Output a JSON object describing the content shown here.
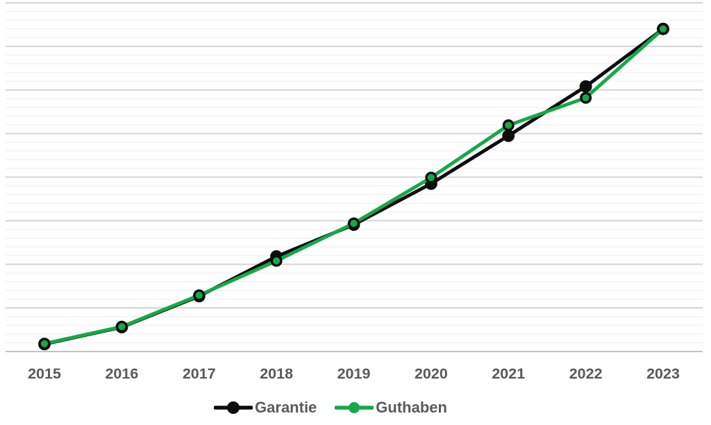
{
  "chart_data": {
    "type": "line",
    "title": "",
    "xlabel": "",
    "ylabel": "",
    "categories": [
      "2015",
      "2016",
      "2017",
      "2018",
      "2019",
      "2020",
      "2021",
      "2022",
      "2023"
    ],
    "series": [
      {
        "name": "Garantie",
        "color": "#0D0D0D",
        "marker": "solid",
        "values": [
          0.17,
          0.56,
          1.27,
          2.18,
          2.91,
          3.85,
          4.95,
          6.08,
          7.4
        ]
      },
      {
        "name": "Guthaben",
        "color": "#16A849",
        "marker": "outlined",
        "marker_outline_color": "#0D0D0D",
        "values": [
          0.18,
          0.57,
          1.29,
          2.08,
          2.94,
          3.99,
          5.19,
          5.82,
          7.4
        ]
      }
    ],
    "ylim": [
      0,
      8
    ],
    "y_unit": "gridline units (no y-axis tick labels visible)",
    "y_axis_labels_visible": false,
    "y_major_gridline_interval": 1,
    "y_minor_gridline_interval": 0.2,
    "grid": {
      "major_color": "#D4D4D4",
      "minor_color": "#EDEDED",
      "axis_line_color": "#C2C2C2"
    },
    "legend_position": "bottom",
    "tick_label_color": "#595959",
    "legend_label_color": "#595959",
    "background": "#FFFFFF"
  }
}
